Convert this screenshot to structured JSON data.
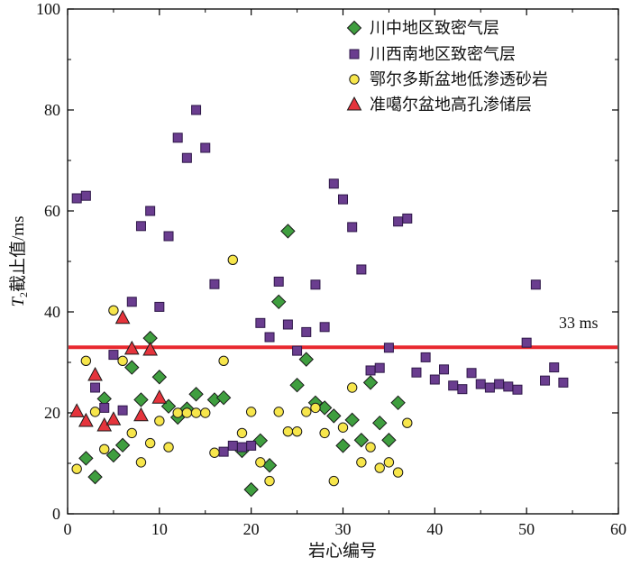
{
  "chart_data": {
    "type": "scatter",
    "title": "",
    "xlabel": "岩心编号",
    "ylabel": {
      "symbol": "T",
      "subscript": "2",
      "text": "截止值/ms"
    },
    "xlim": [
      0,
      60
    ],
    "ylim": [
      0,
      100
    ],
    "xticks": [
      0,
      10,
      20,
      30,
      40,
      50,
      60
    ],
    "yticks": [
      0,
      20,
      40,
      60,
      80,
      100
    ],
    "grid": false,
    "legend_position": "top-center",
    "threshold": {
      "value": 33,
      "label": "33 ms",
      "color": "#e8282e"
    },
    "series": [
      {
        "name": "川中地区致密气层",
        "marker": "diamond",
        "color": "#3f9e3f",
        "stroke": "#1a1a1a",
        "points": [
          [
            2,
            11
          ],
          [
            3,
            7.3
          ],
          [
            4,
            22.8
          ],
          [
            5,
            11.6
          ],
          [
            6,
            13.6
          ],
          [
            7,
            29
          ],
          [
            8,
            22.6
          ],
          [
            9,
            34.8
          ],
          [
            10,
            27.1
          ],
          [
            11,
            21.3
          ],
          [
            12,
            19.1
          ],
          [
            13,
            20.8
          ],
          [
            14,
            23.7
          ],
          [
            16,
            22.6
          ],
          [
            17,
            23
          ],
          [
            19,
            12.5
          ],
          [
            20,
            4.8
          ],
          [
            21,
            14.5
          ],
          [
            22,
            9.6
          ],
          [
            23,
            42
          ],
          [
            24,
            56
          ],
          [
            25,
            25.5
          ],
          [
            26,
            30.6
          ],
          [
            27,
            22
          ],
          [
            28,
            21
          ],
          [
            29,
            19.4
          ],
          [
            30,
            13.5
          ],
          [
            31,
            18.6
          ],
          [
            32,
            14.6
          ],
          [
            33,
            26
          ],
          [
            34,
            18
          ],
          [
            35,
            14.6
          ],
          [
            36,
            22
          ]
        ]
      },
      {
        "name": "川西南地区致密气层",
        "marker": "square",
        "color": "#6a3d8f",
        "stroke": "#2e1748",
        "points": [
          [
            1,
            62.5
          ],
          [
            2,
            63
          ],
          [
            3,
            25
          ],
          [
            4,
            21
          ],
          [
            5,
            31.5
          ],
          [
            6,
            20.5
          ],
          [
            7,
            42
          ],
          [
            8,
            57
          ],
          [
            9,
            60
          ],
          [
            10,
            41
          ],
          [
            11,
            55
          ],
          [
            12,
            74.5
          ],
          [
            13,
            70.5
          ],
          [
            14,
            80
          ],
          [
            15,
            72.5
          ],
          [
            16,
            45.5
          ],
          [
            17,
            12.3
          ],
          [
            18,
            13.5
          ],
          [
            19,
            13.2
          ],
          [
            20,
            13.5
          ],
          [
            21,
            37.8
          ],
          [
            22,
            35
          ],
          [
            23,
            46
          ],
          [
            24,
            37.5
          ],
          [
            25,
            32.3
          ],
          [
            26,
            36
          ],
          [
            27,
            45.4
          ],
          [
            28,
            37
          ],
          [
            29,
            65.4
          ],
          [
            30,
            62.3
          ],
          [
            31,
            56.8
          ],
          [
            32,
            48.4
          ],
          [
            33,
            28.4
          ],
          [
            34,
            28.9
          ],
          [
            35,
            32.9
          ],
          [
            36,
            57.9
          ],
          [
            37,
            58.5
          ],
          [
            38,
            28
          ],
          [
            39,
            31
          ],
          [
            40,
            26.6
          ],
          [
            41,
            28.6
          ],
          [
            42,
            25.4
          ],
          [
            43,
            24.7
          ],
          [
            44,
            27.9
          ],
          [
            45,
            25.7
          ],
          [
            46,
            25
          ],
          [
            47,
            25.7
          ],
          [
            48,
            25.2
          ],
          [
            49,
            24.6
          ],
          [
            50,
            33.9
          ],
          [
            51,
            45.4
          ],
          [
            52,
            26.4
          ],
          [
            53,
            29
          ],
          [
            54,
            26
          ]
        ]
      },
      {
        "name": "鄂尔多斯盆地低渗透砂岩",
        "marker": "circle",
        "color": "#f7e64b",
        "stroke": "#1a1a1a",
        "points": [
          [
            1,
            8.9
          ],
          [
            2,
            30.3
          ],
          [
            3,
            20.2
          ],
          [
            4,
            12.8
          ],
          [
            5,
            40.3
          ],
          [
            6,
            30.3
          ],
          [
            7,
            16
          ],
          [
            8,
            10.2
          ],
          [
            9,
            14
          ],
          [
            10,
            18.4
          ],
          [
            11,
            13.2
          ],
          [
            12,
            20
          ],
          [
            13,
            20
          ],
          [
            14,
            20
          ],
          [
            15,
            20
          ],
          [
            16,
            12.1
          ],
          [
            17,
            30.3
          ],
          [
            18,
            50.3
          ],
          [
            19,
            16
          ],
          [
            20,
            20.2
          ],
          [
            21,
            10.2
          ],
          [
            22,
            6.5
          ],
          [
            23,
            20.2
          ],
          [
            24,
            16.3
          ],
          [
            25,
            16.3
          ],
          [
            26,
            20.2
          ],
          [
            27,
            21
          ],
          [
            28,
            16
          ],
          [
            29,
            6.5
          ],
          [
            30,
            17.1
          ],
          [
            31,
            25
          ],
          [
            32,
            10.2
          ],
          [
            33,
            13.2
          ],
          [
            34,
            9.1
          ],
          [
            35,
            10.2
          ],
          [
            36,
            8.2
          ],
          [
            37,
            18
          ]
        ]
      },
      {
        "name": "准噶尔盆地高孔渗储层",
        "marker": "triangle",
        "color": "#e5343c",
        "stroke": "#1a1a1a",
        "points": [
          [
            1,
            20.3
          ],
          [
            2,
            18.4
          ],
          [
            3,
            27.5
          ],
          [
            4,
            17.5
          ],
          [
            5,
            18.7
          ],
          [
            6,
            38.8
          ],
          [
            7,
            32.7
          ],
          [
            8,
            19.5
          ],
          [
            9,
            32.5
          ],
          [
            10,
            23
          ]
        ]
      }
    ]
  }
}
